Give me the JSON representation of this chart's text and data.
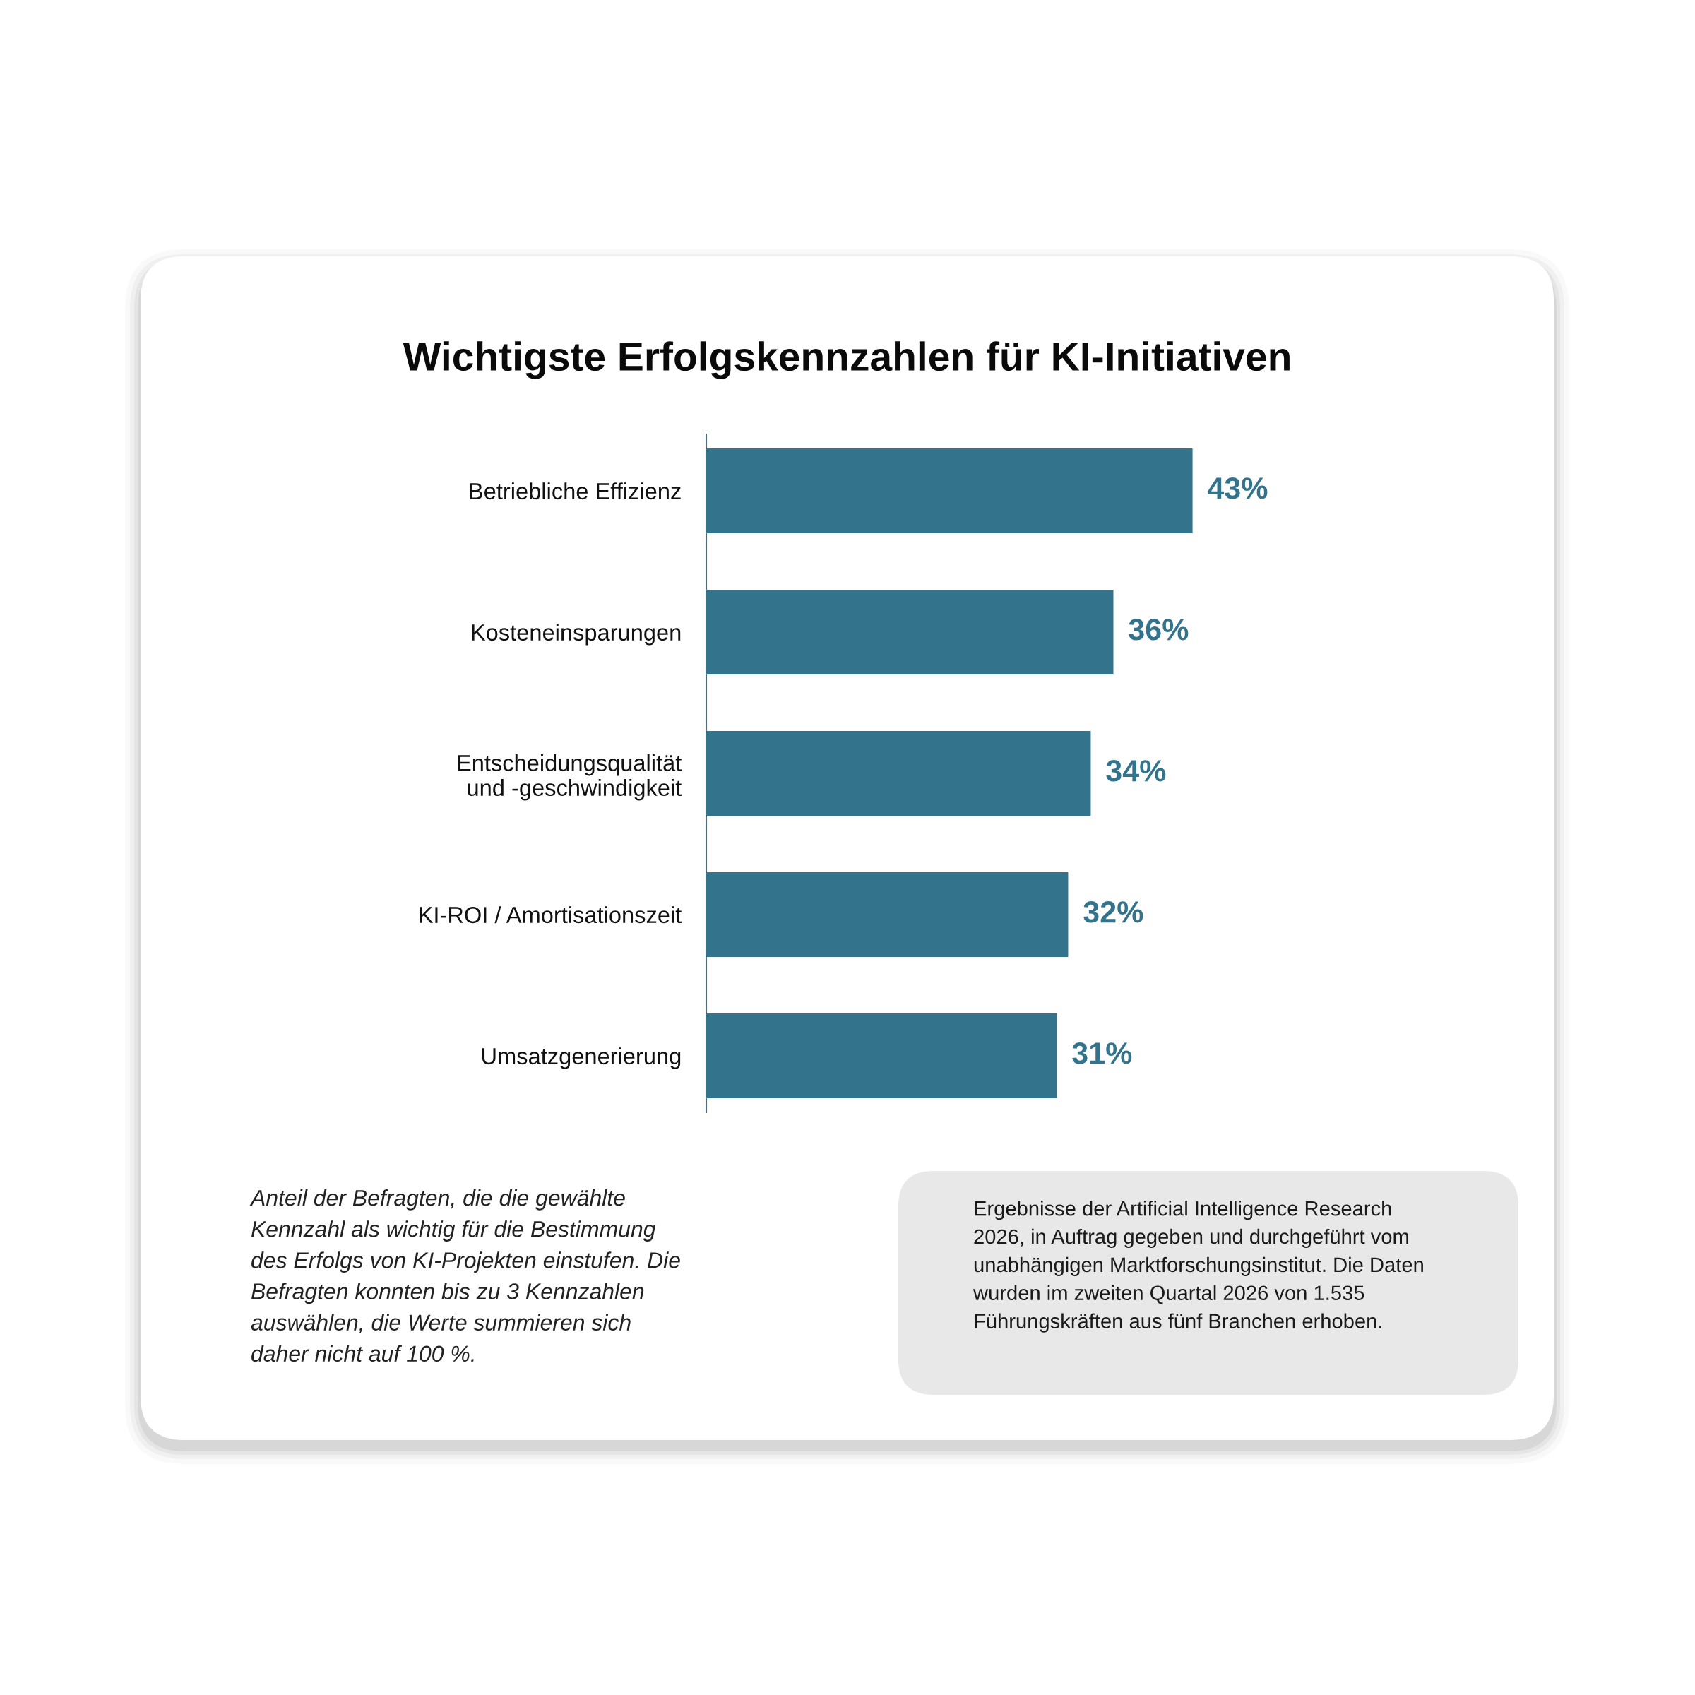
{
  "chart_data": {
    "type": "bar",
    "orientation": "horizontal",
    "title": "Wichtigste Erfolgskennzahlen für KI-Initiativen",
    "categories": [
      "Betriebliche Effizienz",
      "Kosteneinsparungen",
      "Entscheidungsqualität\nund -geschwindigkeit",
      "KI-ROI / Amortisationszeit",
      "Umsatzgenerierung"
    ],
    "values": [
      43,
      36,
      34,
      32,
      31
    ],
    "color": "#33738c",
    "value_labels": [
      "43%",
      "36%",
      "34%",
      "32%",
      "31%"
    ],
    "tick_labels": "y",
    "grid": false,
    "annotations": [
      "Anteil der Befragten, die die gewählte\nKennzahl als wichtig für die Bestimmung\ndes Erfolgs von KI-Projekten einstufen. Die\nBefragten konnten bis zu 3 Kennzahlen\nauswählen, die Werte summieren sich\ndaher nicht auf 100 %.",
      "Ergebnisse der Artificial Intelligence Research\n2026, in Auftrag gegeben und durchgeführt vom\nunabhängigen Marktforschungsinstitut. Die Daten\nwurden im zweiten Quartal 2026 von 1.535\nFührungskräften aus fünf Branchen erhoben."
    ]
  }
}
